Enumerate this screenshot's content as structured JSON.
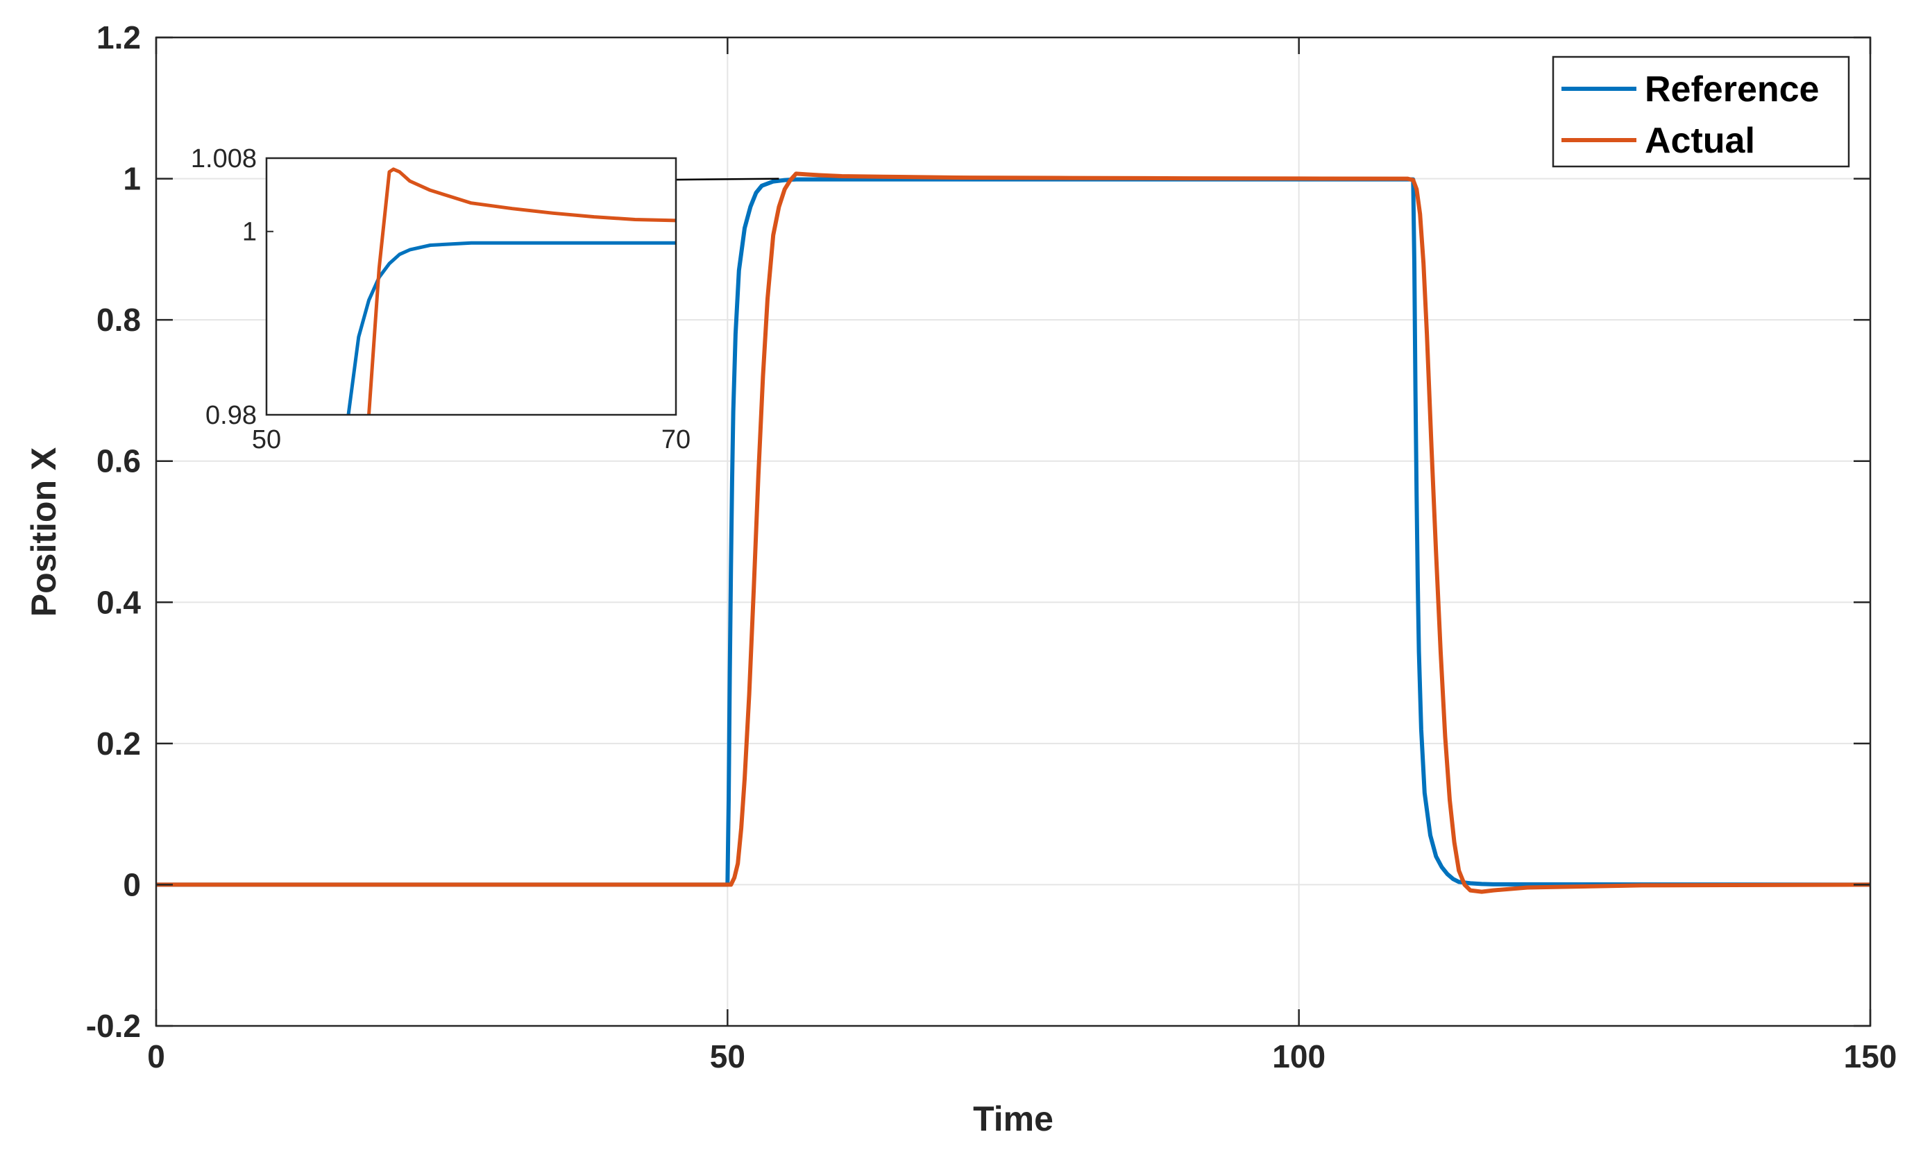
{
  "chart_data": {
    "type": "line",
    "xlabel": "Time",
    "ylabel": "Position X",
    "xlim": [
      0,
      150
    ],
    "ylim": [
      -0.2,
      1.2
    ],
    "xticks": [
      "0",
      "50",
      "100",
      "150"
    ],
    "yticks": [
      "-0.2",
      "0",
      "0.2",
      "0.4",
      "0.6",
      "0.8",
      "1",
      "1.2"
    ],
    "grid": true,
    "legend_position": "top-right",
    "series": [
      {
        "name": "Reference",
        "color": "#0072BD",
        "x": [
          0,
          49.9,
          50.0,
          50.1,
          50.2,
          50.3,
          50.4,
          50.5,
          50.7,
          51.0,
          51.5,
          52.0,
          52.5,
          53.0,
          54.0,
          55.0,
          56.0,
          57.0,
          110,
          110.1,
          110.2,
          110.3,
          110.4,
          110.5,
          110.7,
          111.0,
          111.5,
          112.0,
          112.5,
          113.0,
          113.5,
          114.0,
          115.0,
          116.0,
          117.0,
          150
        ],
        "y": [
          0,
          0,
          0,
          0.12,
          0.3,
          0.45,
          0.57,
          0.67,
          0.78,
          0.87,
          0.93,
          0.96,
          0.98,
          0.99,
          0.996,
          0.998,
          0.999,
          0.999,
          0.999,
          0.88,
          0.7,
          0.55,
          0.43,
          0.33,
          0.22,
          0.13,
          0.07,
          0.04,
          0.025,
          0.015,
          0.008,
          0.004,
          0.002,
          0.001,
          0.0005,
          0
        ]
      },
      {
        "name": "Actual",
        "color": "#D95319",
        "x": [
          0,
          50.3,
          50.6,
          50.9,
          51.2,
          51.5,
          51.9,
          52.3,
          52.7,
          53.1,
          53.5,
          54.0,
          54.5,
          55.0,
          55.5,
          56.0,
          57.0,
          58.0,
          60.0,
          65.0,
          70.0,
          80.0,
          90.0,
          100.0,
          109.5,
          110.0,
          110.3,
          110.6,
          110.9,
          111.2,
          111.6,
          112.0,
          112.4,
          112.8,
          113.2,
          113.6,
          114.0,
          114.5,
          115.0,
          116.0,
          117.0,
          120.0,
          130.0,
          150.0
        ],
        "y": [
          0,
          0,
          0.01,
          0.03,
          0.08,
          0.15,
          0.27,
          0.42,
          0.58,
          0.72,
          0.83,
          0.92,
          0.96,
          0.985,
          0.998,
          1.007,
          1.006,
          1.005,
          1.0035,
          1.0025,
          1.0015,
          1.001,
          1.0005,
          1.0002,
          1.0,
          0.998,
          0.985,
          0.95,
          0.88,
          0.78,
          0.62,
          0.47,
          0.33,
          0.21,
          0.12,
          0.06,
          0.02,
          0.0,
          -0.008,
          -0.01,
          -0.008,
          -0.004,
          -0.001,
          0
        ]
      }
    ],
    "annotations": [
      {
        "type": "arrow",
        "from": [
          54.5,
          1.0
        ],
        "to": [
          30.5,
          0.996
        ]
      }
    ],
    "inset": {
      "type": "line",
      "xlim": [
        50,
        70
      ],
      "ylim": [
        0.98,
        1.008
      ],
      "xticks": [
        "50",
        "70"
      ],
      "yticks": [
        "0.98",
        "1",
        "1.008"
      ],
      "series": [
        {
          "name": "Reference",
          "color": "#0072BD",
          "x": [
            54.0,
            54.5,
            55.0,
            55.5,
            56.0,
            56.5,
            57.0,
            58.0,
            60.0,
            62.0,
            65.0,
            70.0
          ],
          "y": [
            0.98,
            0.9885,
            0.9925,
            0.995,
            0.9965,
            0.9975,
            0.998,
            0.9985,
            0.99875,
            0.99875,
            0.99875,
            0.99875
          ]
        },
        {
          "name": "Actual",
          "color": "#D95319",
          "x": [
            55.0,
            55.5,
            56.0,
            56.2,
            56.5,
            57.0,
            58.0,
            59.0,
            60.0,
            62.0,
            64.0,
            66.0,
            68.0,
            70.0
          ],
          "y": [
            0.98,
            0.996,
            1.0065,
            1.0068,
            1.0065,
            1.0055,
            1.0045,
            1.0038,
            1.0031,
            1.0025,
            1.002,
            1.0016,
            1.0013,
            1.0012
          ]
        }
      ]
    }
  }
}
